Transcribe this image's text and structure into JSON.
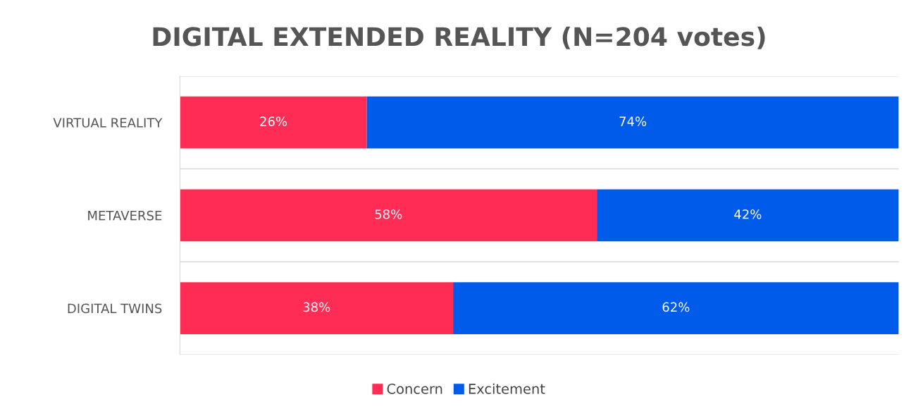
{
  "chart_data": {
    "type": "bar",
    "orientation": "horizontal",
    "stacked": true,
    "title": "DIGITAL EXTENDED REALITY (N=204 votes)",
    "categories": [
      "VIRTUAL REALITY",
      "METAVERSE",
      "DIGITAL TWINS"
    ],
    "series": [
      {
        "name": "Concern",
        "color": "#ff2d55",
        "values": [
          26,
          58,
          38
        ],
        "value_labels": [
          "26%",
          "58%",
          "38%"
        ]
      },
      {
        "name": "Excitement",
        "color": "#005bea",
        "values": [
          74,
          42,
          62
        ],
        "value_labels": [
          "74%",
          "42%",
          "62%"
        ]
      }
    ],
    "xlim": [
      0,
      100
    ],
    "grid": "y",
    "legend": "bottom"
  }
}
